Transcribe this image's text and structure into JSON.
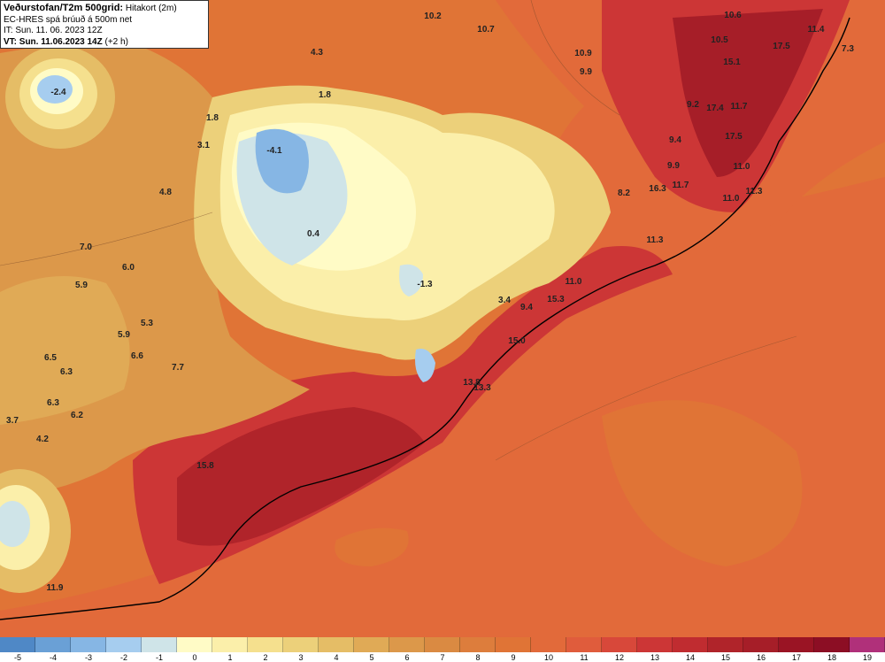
{
  "header": {
    "title": "Veðurstofan/T2m 500grid:",
    "title_suffix": "Hitakort (2m)",
    "model": "EC-HRES spá brúuð á 500m net",
    "issue_time": "IT: Sun. 11. 06. 2023 12Z",
    "valid_time": "VT: Sun. 11.06.2023 14Z",
    "valid_offset": "(+2 h)"
  },
  "map_labels": [
    "-2.4",
    "-4.1",
    "0.4",
    "-1.3",
    "1.8",
    "1.8",
    "3.1",
    "4.3",
    "4.8",
    "7.0",
    "6.0",
    "5.9",
    "5.3",
    "5.9",
    "6.6",
    "6.5",
    "6.3",
    "7.7",
    "6.3",
    "6.2",
    "3.7",
    "4.2",
    "11.9",
    "15.8",
    "13.8",
    "15.0",
    "15.3",
    "3.4",
    "9.4",
    "11.0",
    "13.3",
    "11.3",
    "8.2",
    "16.3",
    "11.7",
    "11.0",
    "11.0",
    "11.3",
    "9.9",
    "9.4",
    "17.5",
    "17.4",
    "11.7",
    "9.2",
    "15.1",
    "10.5",
    "17.5",
    "10.6",
    "11.4",
    "7.3",
    "10.2",
    "10.7",
    "10.9",
    "9.9"
  ],
  "legend": {
    "ticks": [
      "-5",
      "-4",
      "-3",
      "-2",
      "-1",
      "0",
      "1",
      "2",
      "3",
      "4",
      "5",
      "6",
      "7",
      "8",
      "9",
      "10",
      "11",
      "12",
      "13",
      "14",
      "15",
      "16",
      "17",
      "18",
      "19"
    ],
    "colors": [
      "#4f88c6",
      "#6aa0d6",
      "#86b6e4",
      "#a6cdef",
      "#cfe4e8",
      "#fffbc6",
      "#fbefaa",
      "#f5e08e",
      "#ecd07a",
      "#e5bd66",
      "#e0aa56",
      "#dc984a",
      "#da8a42",
      "#dd7d3c",
      "#e07436",
      "#e26a3a",
      "#e05c3c",
      "#d8483a",
      "#cc3636",
      "#c02c30",
      "#b0242a",
      "#a61e28",
      "#9a1424",
      "#8c0e24",
      "#b0307a"
    ]
  }
}
